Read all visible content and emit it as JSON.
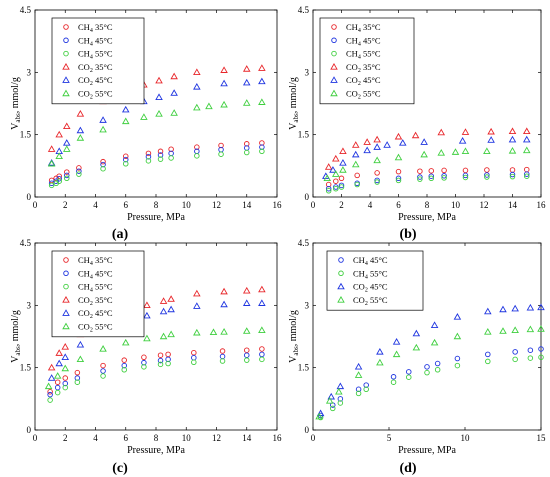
{
  "figure": {
    "panels": [
      {
        "label": "(a)"
      },
      {
        "label": "(b)"
      },
      {
        "label": "(c)"
      },
      {
        "label": "(d)"
      }
    ]
  },
  "chart_data": [
    {
      "panel": "(a)",
      "type": "scatter",
      "xlabel": "Pressure, MPa",
      "ylabel": "V_abs, mmol/g",
      "xlim": [
        0,
        16
      ],
      "ylim": [
        0,
        4.5
      ],
      "xticks": [
        0,
        2,
        4,
        6,
        8,
        10,
        12,
        14,
        16
      ],
      "yticks": [
        0,
        1.5,
        3,
        4.5
      ],
      "legend_position": "top-left",
      "series": [
        {
          "name": "CH4 35°C",
          "gas": "CH4",
          "temp": "35°C",
          "color": "#e8262a",
          "marker": "circle",
          "x": [
            1.1,
            1.4,
            1.6,
            2.1,
            2.9,
            4.5,
            6.0,
            7.5,
            8.3,
            9.0,
            10.7,
            12.3,
            14.0,
            15.0
          ],
          "y": [
            0.4,
            0.45,
            0.5,
            0.6,
            0.7,
            0.85,
            0.98,
            1.05,
            1.1,
            1.15,
            1.2,
            1.24,
            1.28,
            1.3
          ]
        },
        {
          "name": "CH4 45°C",
          "gas": "CH4",
          "temp": "45°C",
          "color": "#1f35e0",
          "marker": "circle",
          "x": [
            1.1,
            1.4,
            1.6,
            2.1,
            2.9,
            4.5,
            6.0,
            7.5,
            8.3,
            9.0,
            10.7,
            12.3,
            14.0,
            15.0
          ],
          "y": [
            0.33,
            0.38,
            0.44,
            0.52,
            0.62,
            0.78,
            0.9,
            0.97,
            1.01,
            1.05,
            1.1,
            1.14,
            1.18,
            1.2
          ]
        },
        {
          "name": "CH4 55°C",
          "gas": "CH4",
          "temp": "55°C",
          "color": "#3fcf3f",
          "marker": "circle",
          "x": [
            1.1,
            1.4,
            1.6,
            2.1,
            2.9,
            4.5,
            6.0,
            7.5,
            8.3,
            9.0,
            10.7,
            12.3,
            14.0,
            15.0
          ],
          "y": [
            0.28,
            0.33,
            0.38,
            0.45,
            0.55,
            0.68,
            0.8,
            0.87,
            0.91,
            0.94,
            0.99,
            1.03,
            1.07,
            1.1
          ]
        },
        {
          "name": "CO2 35°C",
          "gas": "CO2",
          "temp": "35°C",
          "color": "#e8262a",
          "marker": "triangle",
          "x": [
            1.1,
            1.6,
            2.1,
            3.0,
            4.5,
            6.0,
            7.2,
            8.2,
            9.2,
            10.7,
            12.5,
            14.0,
            15.0
          ],
          "y": [
            1.15,
            1.5,
            1.7,
            2.0,
            2.3,
            2.5,
            2.7,
            2.8,
            2.9,
            3.0,
            3.05,
            3.08,
            3.1
          ]
        },
        {
          "name": "CO2 45°C",
          "gas": "CO2",
          "temp": "45°C",
          "color": "#1f35e0",
          "marker": "triangle",
          "x": [
            1.1,
            1.6,
            2.1,
            3.0,
            4.5,
            6.0,
            7.2,
            8.2,
            9.2,
            10.7,
            12.5,
            14.0,
            15.0
          ],
          "y": [
            0.82,
            1.1,
            1.3,
            1.6,
            1.85,
            2.1,
            2.3,
            2.4,
            2.5,
            2.65,
            2.73,
            2.75,
            2.78
          ]
        },
        {
          "name": "CO2 55°C",
          "gas": "CO2",
          "temp": "55°C",
          "color": "#3fcf3f",
          "marker": "triangle",
          "x": [
            1.1,
            1.6,
            2.1,
            3.0,
            4.5,
            6.0,
            7.2,
            8.2,
            9.2,
            10.7,
            11.5,
            12.5,
            14.0,
            15.0
          ],
          "y": [
            0.8,
            0.98,
            1.15,
            1.42,
            1.62,
            1.82,
            1.92,
            2.0,
            2.02,
            2.15,
            2.18,
            2.22,
            2.26,
            2.28
          ]
        }
      ]
    },
    {
      "panel": "(b)",
      "type": "scatter",
      "xlabel": "Pressure, MPa",
      "ylabel": "V_abs, mmol/g",
      "xlim": [
        0,
        16
      ],
      "ylim": [
        0,
        4.5
      ],
      "xticks": [
        0,
        2,
        4,
        6,
        8,
        10,
        12,
        14,
        16
      ],
      "yticks": [
        0,
        1.5,
        3,
        4.5
      ],
      "legend_position": "top-left",
      "series": [
        {
          "name": "CH4 35°C",
          "gas": "CH4",
          "temp": "35°C",
          "color": "#e8262a",
          "marker": "circle",
          "x": [
            1.1,
            1.6,
            2.0,
            3.1,
            4.5,
            6.0,
            7.5,
            8.3,
            9.2,
            10.7,
            12.2,
            14.0,
            15.0
          ],
          "y": [
            0.3,
            0.38,
            0.45,
            0.52,
            0.58,
            0.61,
            0.62,
            0.63,
            0.64,
            0.64,
            0.65,
            0.65,
            0.66
          ]
        },
        {
          "name": "CH4 45°C",
          "gas": "CH4",
          "temp": "45°C",
          "color": "#1f35e0",
          "marker": "circle",
          "x": [
            1.1,
            1.6,
            2.0,
            3.1,
            4.5,
            6.0,
            7.5,
            8.3,
            9.2,
            10.7,
            12.2,
            14.0,
            15.0
          ],
          "y": [
            0.2,
            0.24,
            0.28,
            0.33,
            0.4,
            0.45,
            0.48,
            0.5,
            0.51,
            0.52,
            0.53,
            0.54,
            0.55
          ]
        },
        {
          "name": "CH4 55°C",
          "gas": "CH4",
          "temp": "55°C",
          "color": "#3fcf3f",
          "marker": "circle",
          "x": [
            1.1,
            1.6,
            2.0,
            3.1,
            4.5,
            6.0,
            7.5,
            8.3,
            9.2,
            10.7,
            12.2,
            14.0,
            15.0
          ],
          "y": [
            0.15,
            0.2,
            0.24,
            0.3,
            0.36,
            0.4,
            0.43,
            0.45,
            0.46,
            0.47,
            0.48,
            0.49,
            0.5
          ]
        },
        {
          "name": "CO2 35°C",
          "gas": "CO2",
          "temp": "35°C",
          "color": "#e8262a",
          "marker": "triangle",
          "x": [
            1.1,
            1.6,
            2.1,
            3.0,
            3.8,
            4.5,
            6.0,
            7.2,
            9.0,
            10.7,
            12.5,
            14.0,
            15.0
          ],
          "y": [
            0.72,
            0.92,
            1.1,
            1.25,
            1.32,
            1.38,
            1.45,
            1.48,
            1.55,
            1.56,
            1.57,
            1.58,
            1.58
          ]
        },
        {
          "name": "CO2 45°C",
          "gas": "CO2",
          "temp": "45°C",
          "color": "#1f35e0",
          "marker": "triangle",
          "x": [
            0.9,
            1.4,
            2.1,
            3.0,
            3.8,
            4.5,
            5.2,
            6.3,
            7.8,
            10.5,
            12.5,
            14.0,
            15.0
          ],
          "y": [
            0.5,
            0.65,
            0.82,
            1.02,
            1.12,
            1.2,
            1.25,
            1.3,
            1.32,
            1.35,
            1.37,
            1.38,
            1.38
          ]
        },
        {
          "name": "CO2 55°C",
          "gas": "CO2",
          "temp": "55°C",
          "color": "#3fcf3f",
          "marker": "triangle",
          "x": [
            1.0,
            1.6,
            2.1,
            3.0,
            4.5,
            6.0,
            7.8,
            9.0,
            10.0,
            10.7,
            12.2,
            14.0,
            15.0
          ],
          "y": [
            0.45,
            0.55,
            0.65,
            0.78,
            0.88,
            0.95,
            1.02,
            1.06,
            1.08,
            1.1,
            1.1,
            1.11,
            1.12
          ]
        }
      ]
    },
    {
      "panel": "(c)",
      "type": "scatter",
      "xlabel": "Pressure, MPa",
      "ylabel": "V_abs, mmol/g",
      "xlim": [
        0,
        16
      ],
      "ylim": [
        0,
        4.5
      ],
      "xticks": [
        0,
        2,
        4,
        6,
        8,
        10,
        12,
        14,
        16
      ],
      "yticks": [
        0,
        1.5,
        3,
        4.5
      ],
      "legend_position": "top-left",
      "series": [
        {
          "name": "CH4 35°C",
          "gas": "CH4",
          "temp": "35°C",
          "color": "#e8262a",
          "marker": "circle",
          "x": [
            1.0,
            1.5,
            2.0,
            2.8,
            4.5,
            5.9,
            7.2,
            8.3,
            8.8,
            10.5,
            12.4,
            14.0,
            15.0
          ],
          "y": [
            0.92,
            1.15,
            1.25,
            1.38,
            1.55,
            1.68,
            1.75,
            1.8,
            1.82,
            1.86,
            1.9,
            1.92,
            1.95
          ]
        },
        {
          "name": "CH4 45°C",
          "gas": "CH4",
          "temp": "45°C",
          "color": "#1f35e0",
          "marker": "circle",
          "x": [
            1.0,
            1.5,
            2.0,
            2.8,
            4.5,
            5.9,
            7.2,
            8.3,
            8.8,
            10.5,
            12.4,
            14.0,
            15.0
          ],
          "y": [
            0.85,
            1.02,
            1.12,
            1.25,
            1.42,
            1.55,
            1.62,
            1.67,
            1.7,
            1.74,
            1.77,
            1.8,
            1.82
          ]
        },
        {
          "name": "CH4 55°C",
          "gas": "CH4",
          "temp": "55°C",
          "color": "#3fcf3f",
          "marker": "circle",
          "x": [
            1.0,
            1.5,
            2.0,
            2.8,
            4.5,
            5.9,
            7.2,
            8.3,
            8.8,
            10.5,
            12.4,
            14.0,
            15.0
          ],
          "y": [
            0.72,
            0.9,
            1.02,
            1.15,
            1.3,
            1.45,
            1.52,
            1.58,
            1.6,
            1.63,
            1.66,
            1.68,
            1.7
          ]
        },
        {
          "name": "CO2 35°C",
          "gas": "CO2",
          "temp": "35°C",
          "color": "#e8262a",
          "marker": "triangle",
          "x": [
            1.1,
            1.6,
            2.0,
            3.0,
            4.5,
            6.0,
            7.4,
            8.5,
            9.0,
            10.7,
            12.5,
            14.0,
            15.0
          ],
          "y": [
            1.5,
            1.85,
            2.0,
            2.3,
            2.6,
            2.85,
            3.0,
            3.1,
            3.15,
            3.28,
            3.33,
            3.35,
            3.38
          ]
        },
        {
          "name": "CO2 45°C",
          "gas": "CO2",
          "temp": "45°C",
          "color": "#1f35e0",
          "marker": "triangle",
          "x": [
            1.1,
            1.6,
            2.0,
            3.0,
            4.5,
            6.0,
            7.4,
            8.5,
            9.0,
            10.7,
            12.5,
            14.0,
            15.0
          ],
          "y": [
            1.25,
            1.6,
            1.75,
            2.05,
            2.38,
            2.6,
            2.75,
            2.85,
            2.9,
            2.98,
            3.02,
            3.05,
            3.05
          ]
        },
        {
          "name": "CO2 55°C",
          "gas": "CO2",
          "temp": "55°C",
          "color": "#3fcf3f",
          "marker": "triangle",
          "x": [
            0.9,
            1.5,
            2.0,
            3.0,
            4.5,
            6.0,
            7.4,
            8.5,
            9.0,
            10.7,
            11.8,
            12.5,
            14.0,
            15.0
          ],
          "y": [
            1.05,
            1.3,
            1.48,
            1.7,
            1.95,
            2.1,
            2.2,
            2.25,
            2.3,
            2.34,
            2.35,
            2.36,
            2.38,
            2.4
          ]
        }
      ]
    },
    {
      "panel": "(d)",
      "type": "scatter",
      "xlabel": "Pressure, MPa",
      "ylabel": "V_abs, mmol/g",
      "xlim": [
        0,
        15
      ],
      "ylim": [
        0,
        4.5
      ],
      "xticks": [
        0,
        5,
        10,
        15
      ],
      "yticks": [
        0,
        1.5,
        3,
        4.5
      ],
      "legend_position": "top-left",
      "series": [
        {
          "name": "CH4 45°C",
          "gas": "CH4",
          "temp": "45°C",
          "color": "#1f35e0",
          "marker": "circle",
          "x": [
            0.5,
            1.3,
            1.8,
            3.0,
            3.5,
            5.3,
            6.3,
            7.5,
            8.2,
            9.5,
            11.5,
            13.3,
            14.3,
            15.0
          ],
          "y": [
            0.35,
            0.6,
            0.75,
            0.98,
            1.08,
            1.28,
            1.4,
            1.52,
            1.6,
            1.72,
            1.82,
            1.88,
            1.92,
            1.95
          ]
        },
        {
          "name": "CH4 55°C",
          "gas": "CH4",
          "temp": "55°C",
          "color": "#3fcf3f",
          "marker": "circle",
          "x": [
            0.5,
            1.3,
            1.8,
            3.0,
            3.5,
            5.3,
            6.3,
            7.5,
            8.2,
            9.5,
            11.5,
            13.3,
            14.3,
            15.0
          ],
          "y": [
            0.3,
            0.52,
            0.65,
            0.88,
            0.98,
            1.15,
            1.27,
            1.38,
            1.45,
            1.55,
            1.65,
            1.7,
            1.73,
            1.75
          ]
        },
        {
          "name": "CO2 45°C",
          "gas": "CO2",
          "temp": "45°C",
          "color": "#1f35e0",
          "marker": "triangle",
          "x": [
            0.5,
            1.2,
            1.8,
            3.0,
            4.4,
            5.5,
            6.8,
            8.0,
            9.5,
            11.5,
            12.5,
            13.3,
            14.3,
            15.0
          ],
          "y": [
            0.4,
            0.8,
            1.05,
            1.52,
            1.88,
            2.12,
            2.32,
            2.52,
            2.72,
            2.85,
            2.9,
            2.92,
            2.94,
            2.95
          ]
        },
        {
          "name": "CO2 55°C",
          "gas": "CO2",
          "temp": "55°C",
          "color": "#3fcf3f",
          "marker": "triangle",
          "x": [
            0.4,
            1.1,
            1.7,
            3.0,
            4.4,
            5.5,
            6.8,
            8.0,
            9.5,
            11.5,
            12.5,
            13.3,
            14.3,
            15.0
          ],
          "y": [
            0.32,
            0.7,
            0.92,
            1.32,
            1.62,
            1.82,
            1.98,
            2.1,
            2.25,
            2.36,
            2.38,
            2.4,
            2.42,
            2.43
          ]
        }
      ]
    }
  ]
}
